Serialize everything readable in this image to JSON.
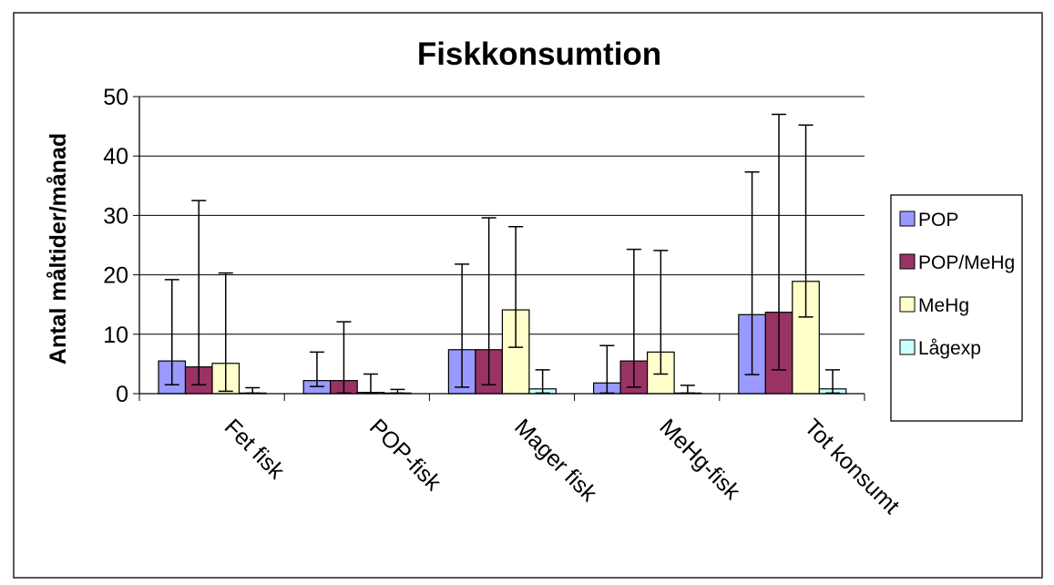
{
  "chart_data": {
    "type": "bar",
    "title": "Fiskkonsumtion",
    "xlabel": "",
    "ylabel": "Antal måltider/månad",
    "ylim": [
      0,
      50
    ],
    "yticks": [
      0,
      10,
      20,
      30,
      40,
      50
    ],
    "grid": true,
    "legend_position": "right",
    "categories": [
      "Fet fisk",
      "POP-fisk",
      "Mager fisk",
      "MeHg-fisk",
      "Tot konsumt"
    ],
    "series": [
      {
        "name": "POP",
        "color": "#9999ff",
        "values": [
          5.5,
          2.2,
          7.4,
          1.8,
          13.3
        ],
        "error_low": [
          1.5,
          1.2,
          1.1,
          0.1,
          3.2
        ],
        "error_high": [
          19.2,
          7.0,
          21.8,
          8.1,
          37.3
        ]
      },
      {
        "name": "POP/MeHg",
        "color": "#993366",
        "values": [
          4.5,
          2.2,
          7.4,
          5.5,
          13.7
        ],
        "error_low": [
          1.5,
          0.1,
          1.5,
          1.1,
          4.0
        ],
        "error_high": [
          32.5,
          12.1,
          29.6,
          24.3,
          47.0
        ]
      },
      {
        "name": "MeHg",
        "color": "#ffffcc",
        "values": [
          5.1,
          0.2,
          14.1,
          7.0,
          18.9
        ],
        "error_low": [
          0.4,
          0.1,
          7.8,
          3.3,
          12.9
        ],
        "error_high": [
          20.3,
          3.3,
          28.1,
          24.1,
          45.2
        ]
      },
      {
        "name": "Lågexp",
        "color": "#ccffff",
        "values": [
          0.1,
          0.1,
          0.8,
          0.1,
          0.8
        ],
        "error_low": [
          0.1,
          0.1,
          0.1,
          0.1,
          0.1
        ],
        "error_high": [
          1.0,
          0.7,
          4.0,
          1.4,
          4.0
        ]
      }
    ]
  }
}
